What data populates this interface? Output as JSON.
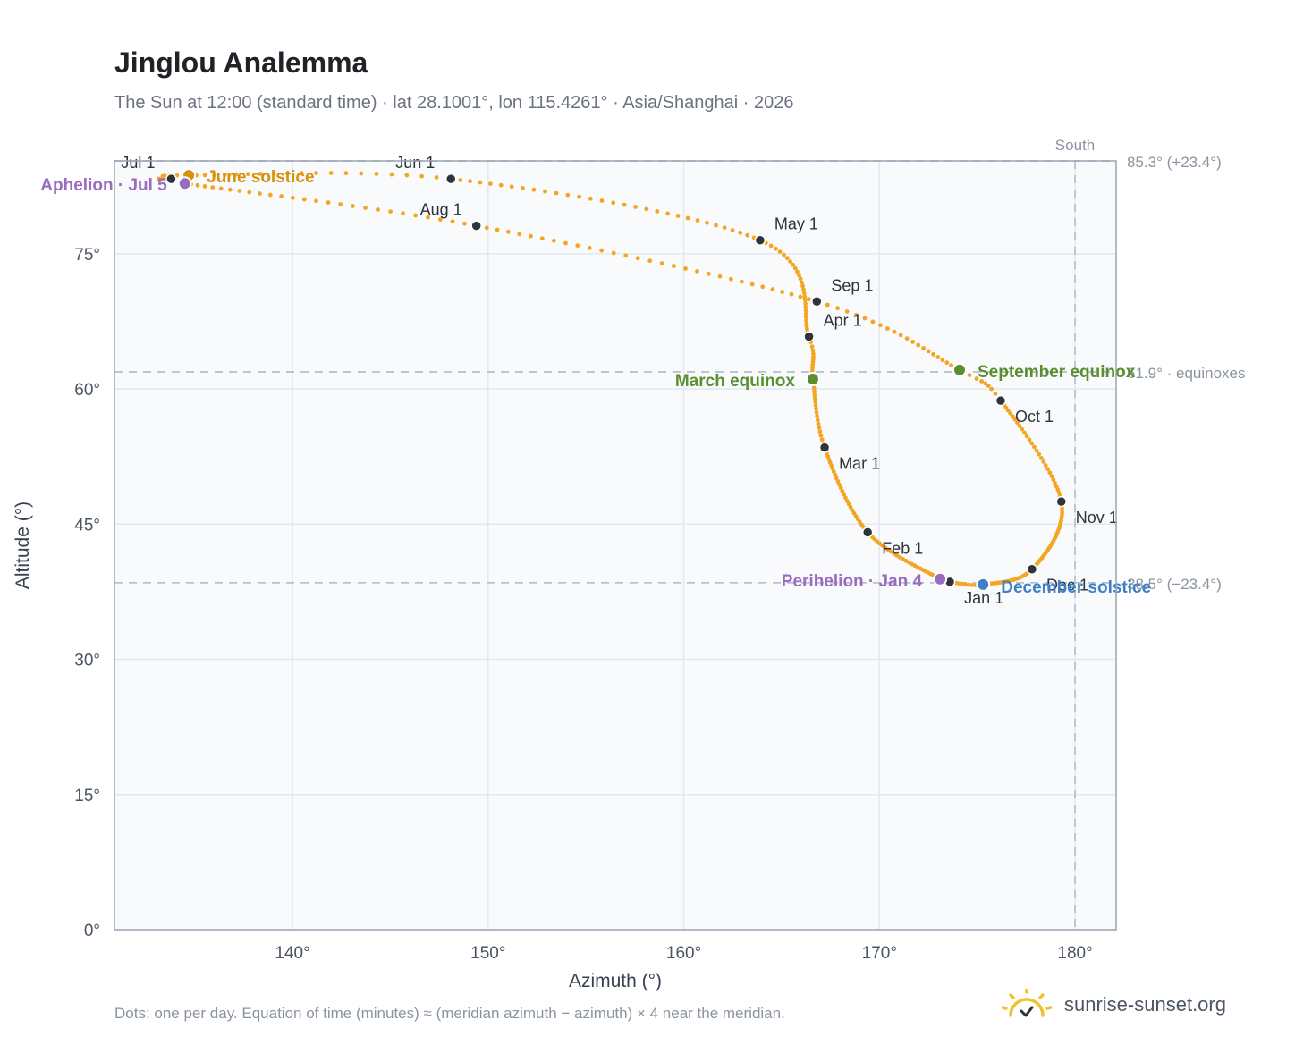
{
  "title": "Jinglou Analemma",
  "subtitle": "The Sun at 12:00 (standard time) · lat 28.1001°, lon 115.4261° · Asia/Shanghai · 2026",
  "footnote": "Dots: one per day. Equation of time (minutes) ≈ (meridian azimuth − azimuth) × 4 near the meridian.",
  "brand": {
    "name": "sunrise-sunset.org",
    "logo_icon": "sun-rising-icon",
    "logo_color": "#f2c12e"
  },
  "colors": {
    "analemma": "#f4a623",
    "month_marker": "#2f343b",
    "solstice_june": "#d4930a",
    "solstice_december": "#3f7fc6",
    "equinox": "#5a8f2e",
    "apsis": "#9a6cbd",
    "reference_line": "#b8c2cc",
    "grid": "#e3e8ee",
    "plot_bg": "#f8fafc",
    "frame": "#9aa4b2"
  },
  "chart_data": {
    "type": "scatter",
    "xlabel": "Azimuth (°)",
    "ylabel": "Altitude (°)",
    "xlim": [
      130.9,
      182.1
    ],
    "ylim": [
      0,
      85.3
    ],
    "x_ticks": [
      "140°",
      "150°",
      "160°",
      "170°",
      "180°"
    ],
    "x_tick_values": [
      140,
      150,
      160,
      170,
      180
    ],
    "y_ticks": [
      "0°",
      "15°",
      "30°",
      "45°",
      "60°",
      "75°"
    ],
    "y_tick_values": [
      0,
      15,
      30,
      45,
      60,
      75
    ],
    "grid": true,
    "south_label": "South",
    "south_azimuth": 180,
    "reference_lines": [
      {
        "altitude": 85.3,
        "label": "85.3° (+23.4°)"
      },
      {
        "altitude": 61.9,
        "label": "61.9° · equinoxes"
      },
      {
        "altitude": 38.5,
        "label": "38.5° (−23.4°)"
      }
    ],
    "month_markers": [
      {
        "label": "Jan 1",
        "azimuth": 173.6,
        "altitude": 38.6
      },
      {
        "label": "Feb 1",
        "azimuth": 169.4,
        "altitude": 44.1
      },
      {
        "label": "Mar 1",
        "azimuth": 167.2,
        "altitude": 53.5
      },
      {
        "label": "Apr 1",
        "azimuth": 166.4,
        "altitude": 65.8
      },
      {
        "label": "May 1",
        "azimuth": 163.9,
        "altitude": 76.5
      },
      {
        "label": "Jun 1",
        "azimuth": 148.1,
        "altitude": 83.3
      },
      {
        "label": "Jul 1",
        "azimuth": 133.8,
        "altitude": 83.3
      },
      {
        "label": "Aug 1",
        "azimuth": 149.4,
        "altitude": 78.1
      },
      {
        "label": "Sep 1",
        "azimuth": 166.8,
        "altitude": 69.7
      },
      {
        "label": "Oct 1",
        "azimuth": 176.2,
        "altitude": 58.7
      },
      {
        "label": "Nov 1",
        "azimuth": 179.3,
        "altitude": 47.5
      },
      {
        "label": "Dec 1",
        "azimuth": 177.8,
        "altitude": 40.0
      }
    ],
    "special_points": [
      {
        "label": "June solstice",
        "azimuth": 134.7,
        "altitude": 83.7,
        "kind": "solstice_june"
      },
      {
        "label": "December solstice",
        "azimuth": 175.3,
        "altitude": 38.3,
        "kind": "solstice_december"
      },
      {
        "label": "March equinox",
        "azimuth": 166.6,
        "altitude": 61.1,
        "kind": "equinox"
      },
      {
        "label": "September equinox",
        "azimuth": 174.1,
        "altitude": 62.1,
        "kind": "equinox"
      },
      {
        "label": "Perihelion · Jan 4",
        "azimuth": 173.1,
        "altitude": 38.9,
        "kind": "apsis"
      },
      {
        "label": "Aphelion · Jul 5",
        "azimuth": 134.5,
        "altitude": 82.8,
        "kind": "apsis"
      }
    ]
  }
}
